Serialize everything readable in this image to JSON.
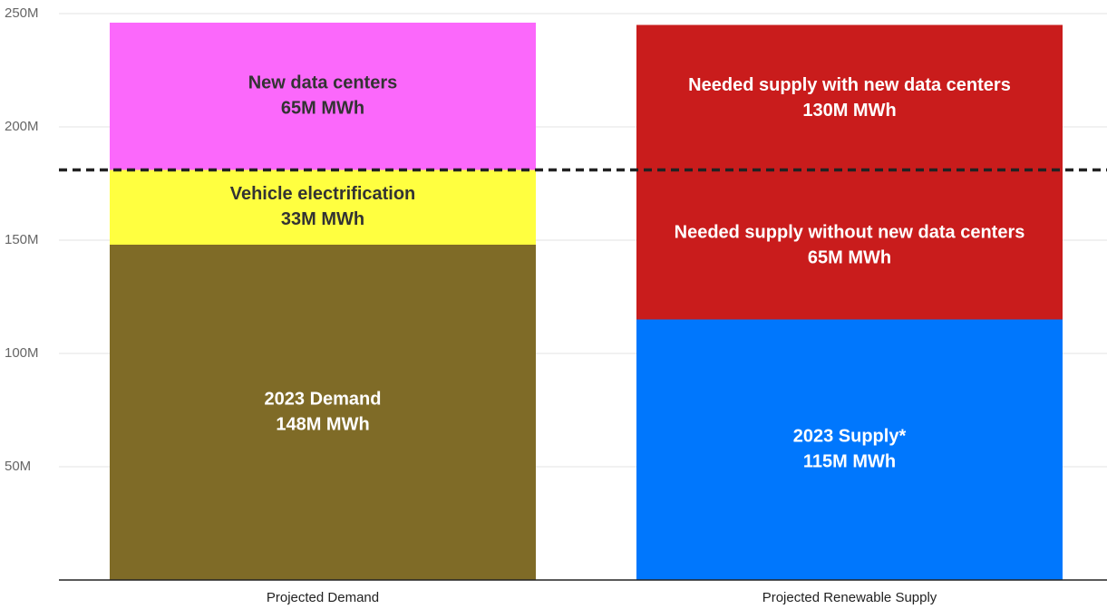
{
  "chart_data": {
    "type": "stacked_bar",
    "categories": [
      "Projected Demand",
      "Projected Renewable Supply"
    ],
    "bars": [
      {
        "segments": [
          {
            "name": "2023 Demand",
            "value": 148,
            "value_label": "148M MWh",
            "color": "#7f6b27",
            "label_color": "#ffffff"
          },
          {
            "name": "Vehicle electrification",
            "value": 33,
            "value_label": "33M MWh",
            "color": "#ffff40",
            "label_color": "#333333"
          },
          {
            "name": "New data centers",
            "value": 65,
            "value_label": "65M MWh",
            "color": "#fb68fb",
            "label_color": "#333333"
          }
        ]
      },
      {
        "segments": [
          {
            "name": "2023 Supply*",
            "value": 115,
            "value_label": "115M MWh",
            "color": "#0077fd",
            "label_color": "#ffffff"
          },
          {
            "name": "Needed supply with new data centers",
            "value": 130,
            "value_label": "130M MWh",
            "color": "#c91c1c",
            "label_color": "#ffffff"
          }
        ]
      }
    ],
    "annotation": {
      "bar": 1,
      "name": "Needed supply without new data centers",
      "value": 65,
      "value_label": "65M MWh"
    },
    "reference_line": 181,
    "ylim": [
      0,
      250
    ],
    "yticks": [
      {
        "value": 50,
        "label": "50M"
      },
      {
        "value": 100,
        "label": "100M"
      },
      {
        "value": 150,
        "label": "150M"
      },
      {
        "value": 200,
        "label": "200M"
      },
      {
        "value": 250,
        "label": "250M"
      }
    ],
    "grid": true
  }
}
